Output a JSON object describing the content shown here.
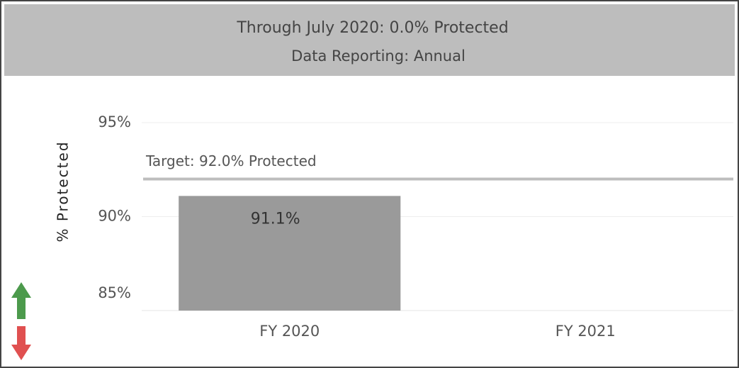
{
  "chart_data": {
    "type": "bar",
    "title": "Through July 2020: 0.0% Protected",
    "subtitle": "Data Reporting: Annual",
    "y_label": "% Protected",
    "categories": [
      "FY 2020",
      "FY 2021"
    ],
    "values": [
      91.1,
      null
    ],
    "value_labels": [
      "91.1%",
      null
    ],
    "color": "#9a9a9a",
    "ylim": [
      85,
      97
    ],
    "yticks": [
      {
        "value": 85,
        "label": "85%"
      },
      {
        "value": 90,
        "label": "90%"
      },
      {
        "value": 95,
        "label": "95%"
      }
    ],
    "grid": true,
    "reference_line": {
      "value": 92,
      "label": "Target: 92.0% Protected",
      "color": "#bdbdbd"
    }
  }
}
